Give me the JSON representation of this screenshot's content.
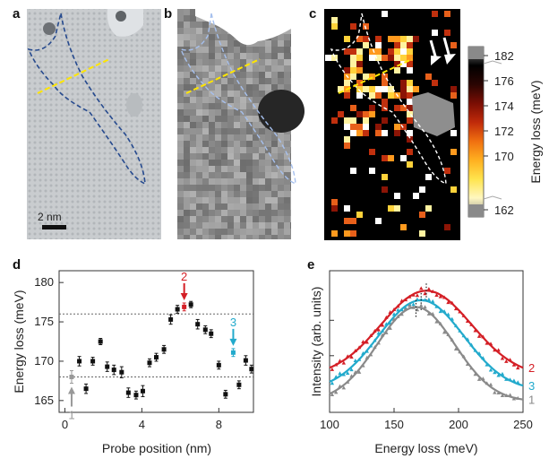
{
  "panels": {
    "a": {
      "label": "a",
      "scale_bar": "2 nm"
    },
    "b": {
      "label": "b"
    },
    "c": {
      "label": "c"
    },
    "d": {
      "label": "d"
    },
    "e": {
      "label": "e"
    }
  },
  "colorbar": {
    "ticks": [
      "182",
      "176",
      "174",
      "172",
      "170",
      "162"
    ],
    "label": "Energy loss (meV)",
    "colors": [
      "#888888",
      "#fff7c0",
      "#ffe44d",
      "#ffb020",
      "#f07010",
      "#c02a0a",
      "#7a0e04",
      "#2a0502",
      "#000000",
      "#888888"
    ]
  },
  "chart_data": [
    {
      "panel": "d",
      "type": "scatter",
      "xlabel": "Probe position (nm)",
      "ylabel": "Energy loss (meV)",
      "xlim": [
        -0.3,
        9.8
      ],
      "ylim": [
        163.5,
        181.5
      ],
      "xticks": [
        "0",
        "4",
        "8"
      ],
      "yticks": [
        "165",
        "170",
        "175",
        "180"
      ],
      "ref_lines": [
        176,
        168
      ],
      "points": [
        {
          "x": 0.35,
          "y": 168.0,
          "err": 0.8,
          "color": "#999999"
        },
        {
          "x": 0.75,
          "y": 170.0,
          "err": 0.6,
          "color": "#111111"
        },
        {
          "x": 1.1,
          "y": 166.5,
          "err": 0.6,
          "color": "#111111"
        },
        {
          "x": 1.45,
          "y": 170.0,
          "err": 0.5,
          "color": "#111111"
        },
        {
          "x": 1.85,
          "y": 172.5,
          "err": 0.4,
          "color": "#111111"
        },
        {
          "x": 2.2,
          "y": 169.3,
          "err": 0.6,
          "color": "#111111"
        },
        {
          "x": 2.55,
          "y": 168.9,
          "err": 0.6,
          "color": "#111111"
        },
        {
          "x": 2.95,
          "y": 168.6,
          "err": 0.7,
          "color": "#111111"
        },
        {
          "x": 3.3,
          "y": 166.0,
          "err": 0.6,
          "color": "#111111"
        },
        {
          "x": 3.7,
          "y": 165.7,
          "err": 0.5,
          "color": "#111111"
        },
        {
          "x": 4.05,
          "y": 166.2,
          "err": 0.7,
          "color": "#111111"
        },
        {
          "x": 4.4,
          "y": 169.8,
          "err": 0.5,
          "color": "#111111"
        },
        {
          "x": 4.75,
          "y": 170.5,
          "err": 0.5,
          "color": "#111111"
        },
        {
          "x": 5.15,
          "y": 171.5,
          "err": 0.5,
          "color": "#111111"
        },
        {
          "x": 5.5,
          "y": 175.3,
          "err": 0.6,
          "color": "#111111"
        },
        {
          "x": 5.85,
          "y": 176.6,
          "err": 0.5,
          "color": "#111111"
        },
        {
          "x": 6.2,
          "y": 176.9,
          "err": 0.5,
          "color": "#d41f26"
        },
        {
          "x": 6.55,
          "y": 177.2,
          "err": 0.4,
          "color": "#111111"
        },
        {
          "x": 6.9,
          "y": 174.7,
          "err": 0.6,
          "color": "#111111"
        },
        {
          "x": 7.3,
          "y": 174.0,
          "err": 0.5,
          "color": "#111111"
        },
        {
          "x": 7.6,
          "y": 173.5,
          "err": 0.5,
          "color": "#111111"
        },
        {
          "x": 8.0,
          "y": 169.5,
          "err": 0.5,
          "color": "#111111"
        },
        {
          "x": 8.35,
          "y": 165.8,
          "err": 0.5,
          "color": "#111111"
        },
        {
          "x": 8.75,
          "y": 171.1,
          "err": 0.5,
          "color": "#22aacc"
        },
        {
          "x": 9.05,
          "y": 167.0,
          "err": 0.5,
          "color": "#111111"
        },
        {
          "x": 9.4,
          "y": 170.1,
          "err": 0.6,
          "color": "#111111"
        },
        {
          "x": 9.7,
          "y": 169.0,
          "err": 0.5,
          "color": "#111111"
        }
      ],
      "markers": [
        {
          "label": "1",
          "x": 0.35,
          "color": "#999999"
        },
        {
          "label": "2",
          "x": 6.2,
          "color": "#d41f26"
        },
        {
          "label": "3",
          "x": 8.75,
          "color": "#22aacc"
        }
      ]
    },
    {
      "panel": "e",
      "type": "line",
      "xlabel": "Energy loss (meV)",
      "ylabel": "Intensity (arb. units)",
      "xlim": [
        100,
        250
      ],
      "xticks": [
        "100",
        "150",
        "200",
        "250"
      ],
      "series": [
        {
          "name": "2",
          "color": "#d41f26",
          "peak": 175,
          "amp": 0.87,
          "base": 0.25,
          "width": 35
        },
        {
          "name": "3",
          "color": "#22aacc",
          "peak": 171,
          "amp": 0.92,
          "base": 0.13,
          "width": 33
        },
        {
          "name": "1",
          "color": "#8a8a8a",
          "peak": 167,
          "amp": 0.96,
          "base": 0.04,
          "width": 30
        }
      ]
    }
  ]
}
